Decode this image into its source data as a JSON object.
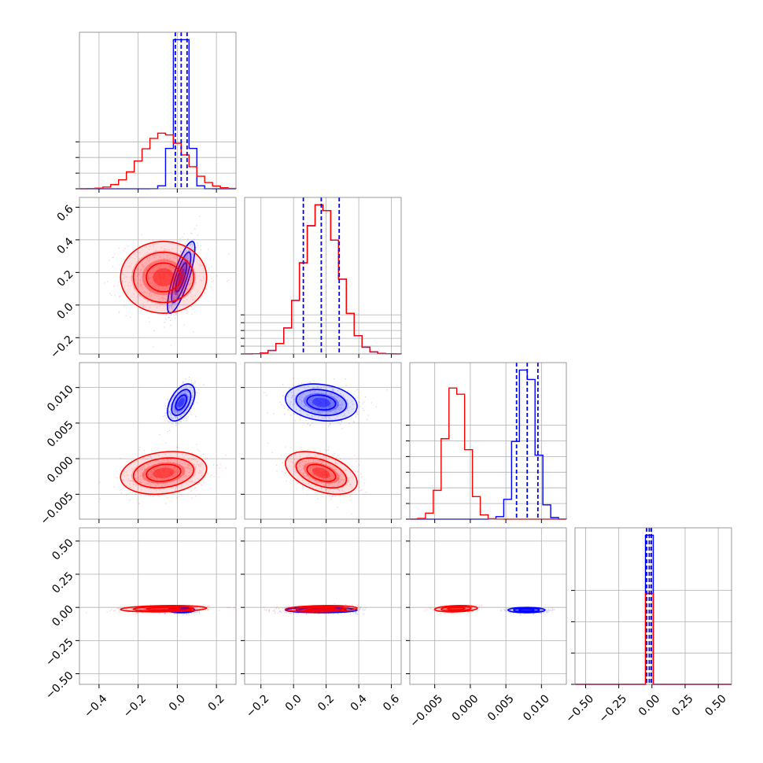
{
  "colors": {
    "series_a": "#ff0000",
    "series_b": "#0000ff",
    "grid": "#b0b0b0",
    "frame": "#808080"
  },
  "chart_data": {
    "type": "corner",
    "n_params": 4,
    "grid": true,
    "series": [
      {
        "color": "#0000ff",
        "means": [
          0.02,
          0.17,
          0.0079,
          -0.02
        ],
        "sds": [
          0.035,
          0.11,
          0.0013,
          0.01
        ],
        "corr": [
          0.8,
          -0.2,
          0.5,
          0.0
        ]
      },
      {
        "color": "#ff0000",
        "means": [
          -0.07,
          0.17,
          -0.002,
          -0.01
        ],
        "sds": [
          0.11,
          0.11,
          0.0015,
          0.012
        ],
        "corr": [
          0.0,
          -0.45,
          0.2,
          0.2
        ]
      }
    ],
    "quantile_lines": {
      "color": "#0000ff",
      "style": "dashed",
      "values": [
        [
          -0.01,
          0.02,
          0.05
        ],
        [
          0.06,
          0.17,
          0.28
        ],
        [
          0.0065,
          0.008,
          0.0095
        ],
        [
          -0.04,
          -0.02,
          -0.005
        ]
      ]
    },
    "params": [
      {
        "range": [
          -0.5,
          0.3
        ],
        "ticks": [
          -0.4,
          -0.2,
          0.0,
          0.2
        ],
        "tick_labels": [
          "−0.4",
          "−0.2",
          "0.0",
          "0.2"
        ]
      },
      {
        "range": [
          -0.3,
          0.66
        ],
        "ticks": [
          -0.2,
          0.0,
          0.2,
          0.4,
          0.6
        ],
        "tick_labels": [
          "−0.2",
          "0.0",
          "0.2",
          "0.4",
          "0.6"
        ]
      },
      {
        "range": [
          -0.0085,
          0.0135
        ],
        "ticks": [
          -0.005,
          0.0,
          0.005,
          0.01
        ],
        "tick_labels": [
          "−0.005",
          "0.000",
          "0.005",
          "0.010"
        ]
      },
      {
        "range": [
          -0.58,
          0.6
        ],
        "ticks": [
          -0.5,
          -0.25,
          0.0,
          0.25,
          0.5
        ],
        "tick_labels": [
          "−0.50",
          "−0.25",
          "0.00",
          "0.25",
          "0.50"
        ]
      }
    ],
    "diag_ticks": [
      [
        0.0,
        0.1,
        0.2,
        0.3
      ],
      [
        0.0,
        0.05,
        0.1,
        0.15,
        0.2,
        0.25
      ],
      [
        0.0,
        0.1,
        0.2,
        0.3,
        0.4,
        0.5,
        0.6
      ],
      [
        0.0,
        0.2,
        0.4,
        0.6
      ]
    ]
  }
}
